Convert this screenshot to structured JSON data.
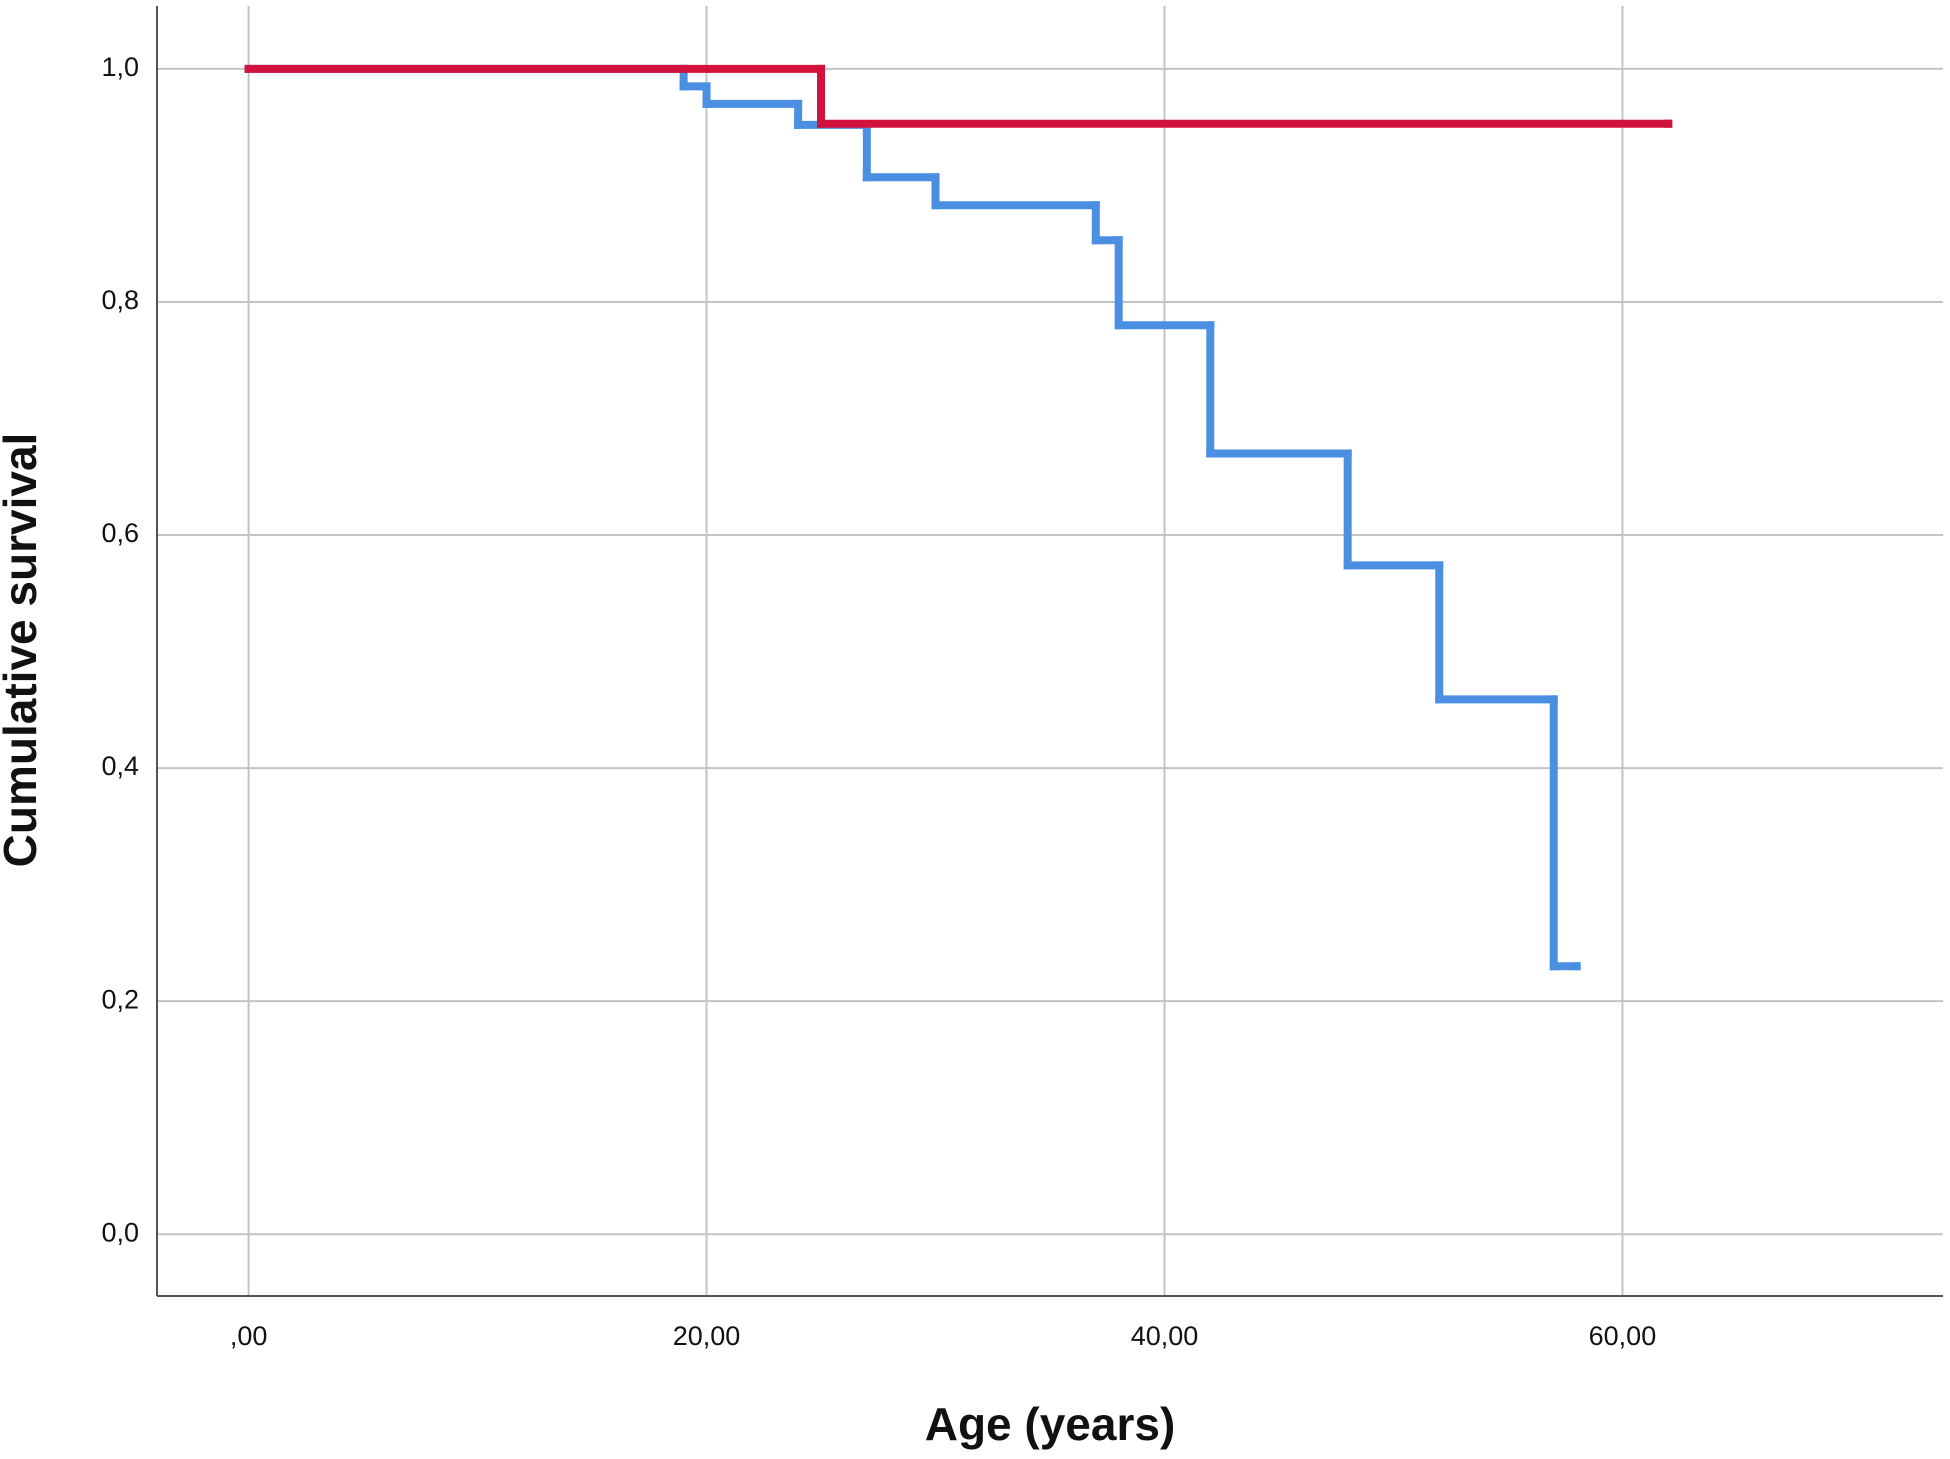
{
  "chart_data": {
    "type": "step",
    "x_label": "Age (years)",
    "y_label": "Cumulative survival",
    "series": [
      {
        "color": "#4a8fe2",
        "x": [
          0,
          19,
          20,
          24,
          27,
          30,
          37,
          38,
          42,
          48,
          52,
          57,
          58
        ],
        "values": [
          1.0,
          0.985,
          0.97,
          0.952,
          0.907,
          0.883,
          0.853,
          0.78,
          0.67,
          0.574,
          0.459,
          0.23,
          0.23
        ]
      },
      {
        "color": "#d2123c",
        "x": [
          0,
          25,
          62
        ],
        "values": [
          1.0,
          0.953,
          0.953
        ]
      }
    ],
    "xlim": [
      -4,
      74
    ],
    "ylim": [
      -0.053,
      1.054
    ],
    "xticks": [
      {
        "value": 0,
        "label": ",00"
      },
      {
        "value": 20,
        "label": "20,00"
      },
      {
        "value": 40,
        "label": "40,00"
      },
      {
        "value": 60,
        "label": "60,00"
      }
    ],
    "yticks": [
      {
        "value": 0,
        "label": "0,0"
      },
      {
        "value": 0.2,
        "label": "0,2"
      },
      {
        "value": 0.4,
        "label": "0,4"
      },
      {
        "value": 0.6,
        "label": "0,6"
      },
      {
        "value": 0.8,
        "label": "0,8"
      },
      {
        "value": 1.0,
        "label": "1,0"
      }
    ],
    "grid": true
  }
}
